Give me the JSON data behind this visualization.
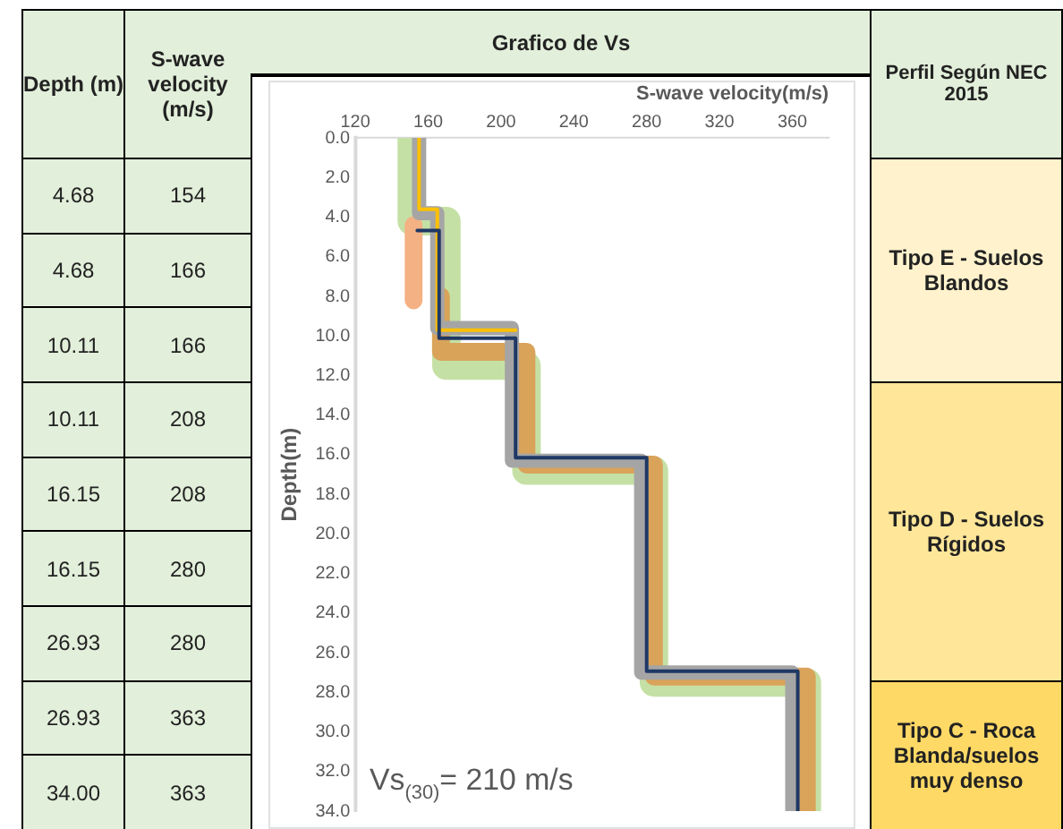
{
  "chart_data": {
    "type": "line",
    "title": "Grafico de Vs",
    "xlabel": "S-wave velocity(m/s)",
    "ylabel": "Depth(m)",
    "xlim": [
      120,
      380
    ],
    "xticks": [
      120,
      160,
      200,
      240,
      280,
      320,
      360
    ],
    "ylim": [
      34,
      0
    ],
    "yticks": [
      {
        "value": 0,
        "label": "0.0"
      },
      {
        "value": 2,
        "label": "2.0"
      },
      {
        "value": 4,
        "label": "4.0"
      },
      {
        "value": 6,
        "label": "6.0"
      },
      {
        "value": 8,
        "label": "8.0"
      },
      {
        "value": 10,
        "label": "10.0"
      },
      {
        "value": 12,
        "label": "12.0"
      },
      {
        "value": 14,
        "label": "14.0"
      },
      {
        "value": 16,
        "label": "16.0"
      },
      {
        "value": 18,
        "label": "18.0"
      },
      {
        "value": 20,
        "label": "20.0"
      },
      {
        "value": 22,
        "label": "22.0"
      },
      {
        "value": 24,
        "label": "24.0"
      },
      {
        "value": 26,
        "label": "26.0"
      },
      {
        "value": 28,
        "label": "28.0"
      },
      {
        "value": 30,
        "label": "30.0"
      },
      {
        "value": 32,
        "label": "32.0"
      },
      {
        "value": 34,
        "label": "34.0"
      }
    ],
    "grid": false,
    "legend": false,
    "series": [
      {
        "color": "#c5e0a5",
        "x": [
          151,
          151,
          170,
          170,
          214,
          214,
          284,
          284,
          368,
          368
        ],
        "values": [
          0,
          4.2,
          4.2,
          11.5,
          11.5,
          16.8,
          16.8,
          27.5,
          27.5,
          34
        ]
      },
      {
        "color": "#f4b183",
        "x": [
          152,
          152
        ],
        "values": [
          4.4,
          8.2
        ]
      },
      {
        "color": "#d9a35a",
        "x": [
          167,
          167,
          214,
          214,
          284,
          284,
          368,
          368
        ],
        "values": [
          8.0,
          10.8,
          10.8,
          16.5,
          16.5,
          27.2,
          27.2,
          34
        ]
      },
      {
        "color": "#a5a5a5",
        "x": [
          155,
          155,
          165,
          165,
          206,
          206,
          277,
          277,
          360,
          360
        ],
        "values": [
          0,
          3.8,
          3.8,
          9.6,
          9.6,
          16.3,
          16.3,
          27.0,
          27.0,
          34
        ]
      },
      {
        "color": "#ffc000",
        "x": [
          155,
          155,
          165,
          165,
          208
        ],
        "values": [
          0,
          3.6,
          3.6,
          9.7,
          9.7
        ]
      },
      {
        "color": "#1f3864",
        "x": [
          154,
          166,
          166,
          208,
          208,
          280,
          280,
          363,
          363
        ],
        "values": [
          4.68,
          4.68,
          10.11,
          10.11,
          16.15,
          16.15,
          26.93,
          26.93,
          34.0
        ]
      }
    ],
    "annotations": [
      "Depth (m)",
      "S-wave velocity (m/s)",
      "Vs$_{(30)}$= 210 m/s",
      "Perfil Según NEC 2015",
      "Tipo E - Suelos Blandos",
      "Tipo D - Suelos Rígidos",
      "Tipo C - Roca Blanda/suelos muy denso",
      "4.68",
      "154",
      "4.68",
      "166",
      "10.11",
      "166",
      "10.11",
      "208",
      "16.15",
      "208",
      "16.15",
      "280",
      "26.93",
      "280",
      "26.93",
      "363",
      "34.00",
      "363"
    ]
  }
}
